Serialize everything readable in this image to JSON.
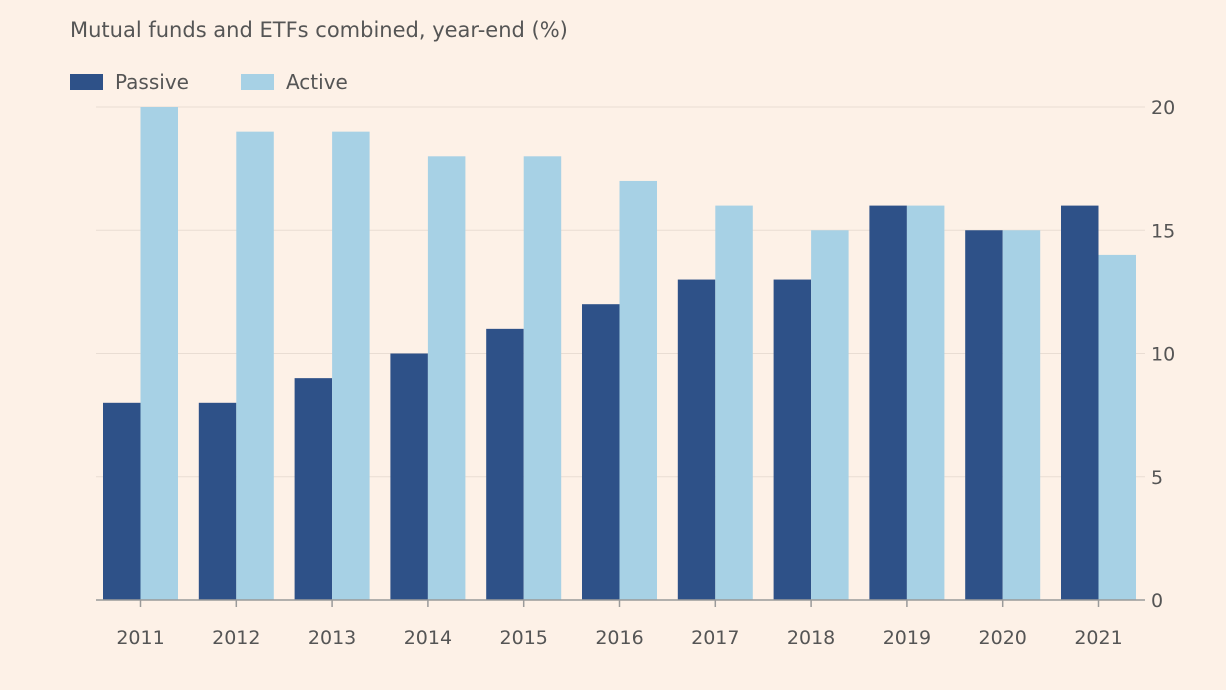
{
  "subtitle": "Mutual funds and ETFs combined, year-end (%)",
  "legend": [
    {
      "label": "Passive",
      "color": "#2e5188"
    },
    {
      "label": "Active",
      "color": "#a7d1e5"
    }
  ],
  "chart_data": {
    "type": "bar",
    "title": "",
    "subtitle": "Mutual funds and ETFs combined, year-end (%)",
    "xlabel": "",
    "ylabel": "",
    "categories": [
      "2011",
      "2012",
      "2013",
      "2014",
      "2015",
      "2016",
      "2017",
      "2018",
      "2019",
      "2020",
      "2021"
    ],
    "series": [
      {
        "name": "Passive",
        "color": "#2e5188",
        "values": [
          8,
          8,
          9,
          10,
          11,
          12,
          13,
          13,
          16,
          15,
          16
        ]
      },
      {
        "name": "Active",
        "color": "#a7d1e5",
        "values": [
          20,
          19,
          19,
          18,
          18,
          17,
          16,
          15,
          16,
          15,
          14
        ]
      }
    ],
    "ylim": [
      0,
      20
    ],
    "yticks": [
      0,
      5,
      10,
      15,
      20
    ],
    "y_axis_side": "right",
    "grid": true,
    "legend_position": "top-left"
  }
}
